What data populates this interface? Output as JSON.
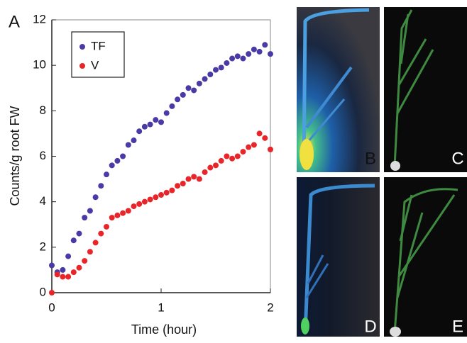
{
  "chart_data": {
    "type": "scatter",
    "panel_label": "A",
    "x_label": "Time (hour)",
    "y_label": "Counts/g root FW",
    "x": [
      0,
      0.05,
      0.1,
      0.15,
      0.2,
      0.25,
      0.3,
      0.35,
      0.4,
      0.45,
      0.5,
      0.55,
      0.6,
      0.65,
      0.7,
      0.75,
      0.8,
      0.85,
      0.9,
      0.95,
      1.0,
      1.05,
      1.1,
      1.15,
      1.2,
      1.25,
      1.3,
      1.35,
      1.4,
      1.45,
      1.5,
      1.55,
      1.6,
      1.65,
      1.7,
      1.75,
      1.8,
      1.85,
      1.9,
      1.95,
      2.0
    ],
    "series": [
      {
        "name": "TF",
        "color": "#4a3aa6",
        "values": [
          1.2,
          0.9,
          1.0,
          1.6,
          2.3,
          2.6,
          3.3,
          3.6,
          4.2,
          4.7,
          5.2,
          5.6,
          5.8,
          6.0,
          6.5,
          6.7,
          7.1,
          7.3,
          7.4,
          7.6,
          7.5,
          7.9,
          8.2,
          8.5,
          8.7,
          9.0,
          8.9,
          9.2,
          9.4,
          9.6,
          9.8,
          9.9,
          10.1,
          10.3,
          10.4,
          10.3,
          10.5,
          10.7,
          10.6,
          10.9,
          10.5
        ]
      },
      {
        "name": "V",
        "color": "#e8262a",
        "values": [
          0.0,
          0.8,
          0.7,
          0.7,
          0.9,
          1.1,
          1.4,
          1.8,
          2.2,
          2.6,
          2.9,
          3.3,
          3.4,
          3.5,
          3.6,
          3.8,
          3.9,
          4.0,
          4.1,
          4.2,
          4.3,
          4.4,
          4.5,
          4.7,
          4.8,
          5.0,
          5.1,
          5.0,
          5.3,
          5.5,
          5.6,
          5.8,
          6.0,
          5.9,
          6.0,
          6.2,
          6.4,
          6.5,
          7.0,
          6.8,
          6.3
        ]
      }
    ],
    "xlim": [
      0,
      2
    ],
    "ylim": [
      0,
      12
    ],
    "xticks": [
      0,
      1,
      2
    ],
    "yticks": [
      0,
      2,
      4,
      6,
      8,
      10,
      12
    ],
    "legend": "upper left"
  },
  "panels": [
    "B",
    "C",
    "D",
    "E"
  ]
}
